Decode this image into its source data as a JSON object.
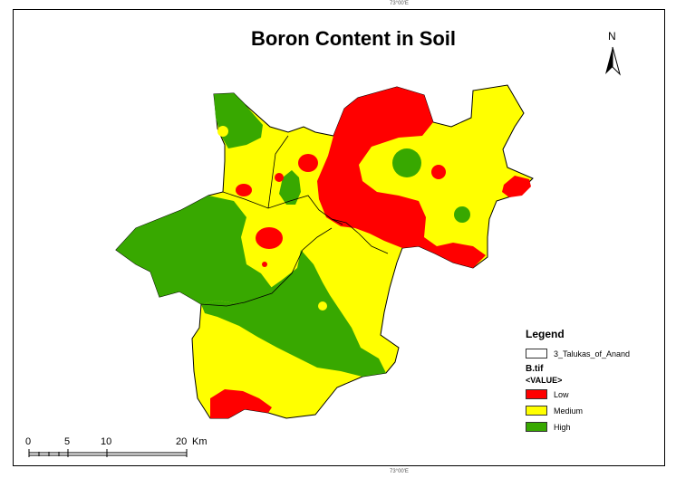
{
  "map": {
    "title": "Boron Content in Soil",
    "graticule_label": "73°00'E",
    "north_label": "N"
  },
  "legend": {
    "title": "Legend",
    "boundary_layer": "3_Talukas_of_Anand",
    "raster_layer": "B.tif",
    "field": "<VALUE>",
    "classes": [
      {
        "label": "Low",
        "color": "#ff0000"
      },
      {
        "label": "Medium",
        "color": "#ffff00"
      },
      {
        "label": "High",
        "color": "#38a800"
      }
    ]
  },
  "scale_bar": {
    "ticks": [
      "0",
      "5",
      "10",
      "20"
    ],
    "unit": "Km"
  }
}
